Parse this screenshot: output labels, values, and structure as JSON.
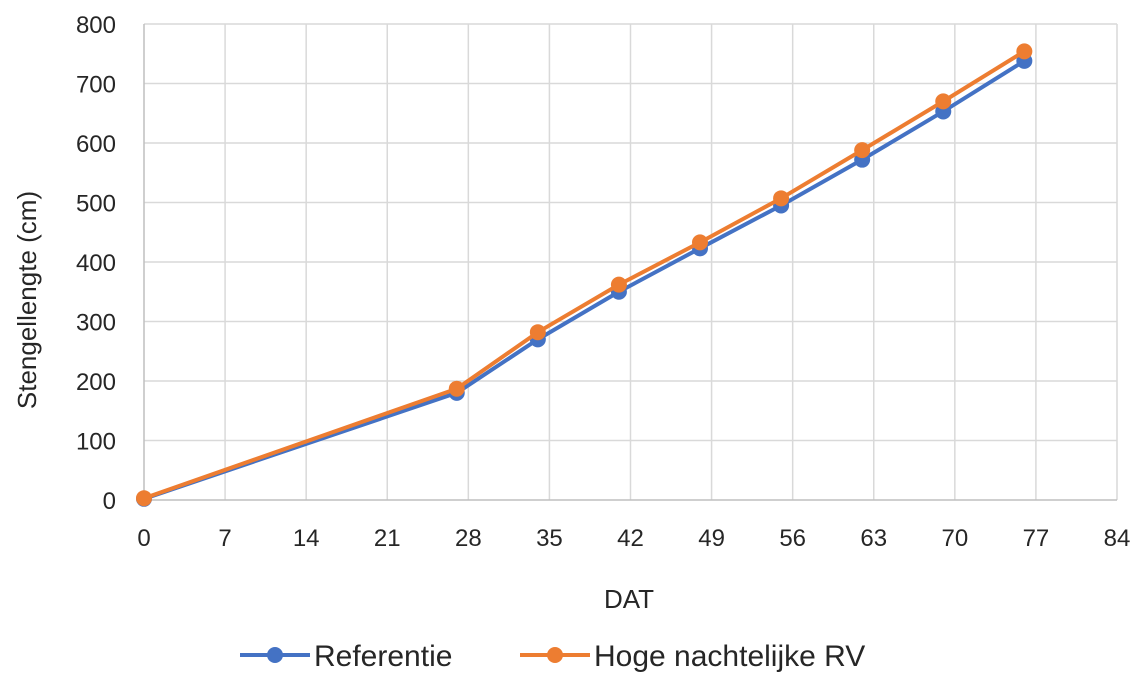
{
  "chart_data": {
    "type": "line",
    "title": "",
    "xlabel": "DAT",
    "ylabel": "Stengellengte (cm)",
    "xlim": [
      0,
      84
    ],
    "ylim": [
      0,
      800
    ],
    "x_ticks": [
      0,
      7,
      14,
      21,
      28,
      35,
      42,
      49,
      56,
      63,
      70,
      77,
      84
    ],
    "y_ticks": [
      0,
      100,
      200,
      300,
      400,
      500,
      600,
      700,
      800
    ],
    "x_tick_labels": [
      "0",
      "7",
      "14",
      "21",
      "28",
      "35",
      "42",
      "49",
      "56",
      "63",
      "70",
      "77",
      "84"
    ],
    "y_tick_labels": [
      "0",
      "100",
      "200",
      "300",
      "400",
      "500",
      "600",
      "700",
      "800"
    ],
    "grid": true,
    "legend_position": "bottom",
    "series": [
      {
        "name": "Referentie",
        "color": "#4472c4",
        "points": [
          {
            "x": 0,
            "y": 2
          },
          {
            "x": 27,
            "y": 180
          },
          {
            "x": 34,
            "y": 270
          },
          {
            "x": 41,
            "y": 350
          },
          {
            "x": 48,
            "y": 423
          },
          {
            "x": 55,
            "y": 495
          },
          {
            "x": 62,
            "y": 572
          },
          {
            "x": 69,
            "y": 653
          },
          {
            "x": 76,
            "y": 738
          }
        ]
      },
      {
        "name": "Hoge nachtelijke RV",
        "color": "#ed7d31",
        "points": [
          {
            "x": 0,
            "y": 3
          },
          {
            "x": 27,
            "y": 187
          },
          {
            "x": 34,
            "y": 282
          },
          {
            "x": 41,
            "y": 362
          },
          {
            "x": 48,
            "y": 433
          },
          {
            "x": 55,
            "y": 507
          },
          {
            "x": 62,
            "y": 588
          },
          {
            "x": 69,
            "y": 670
          },
          {
            "x": 76,
            "y": 754
          }
        ]
      }
    ]
  }
}
